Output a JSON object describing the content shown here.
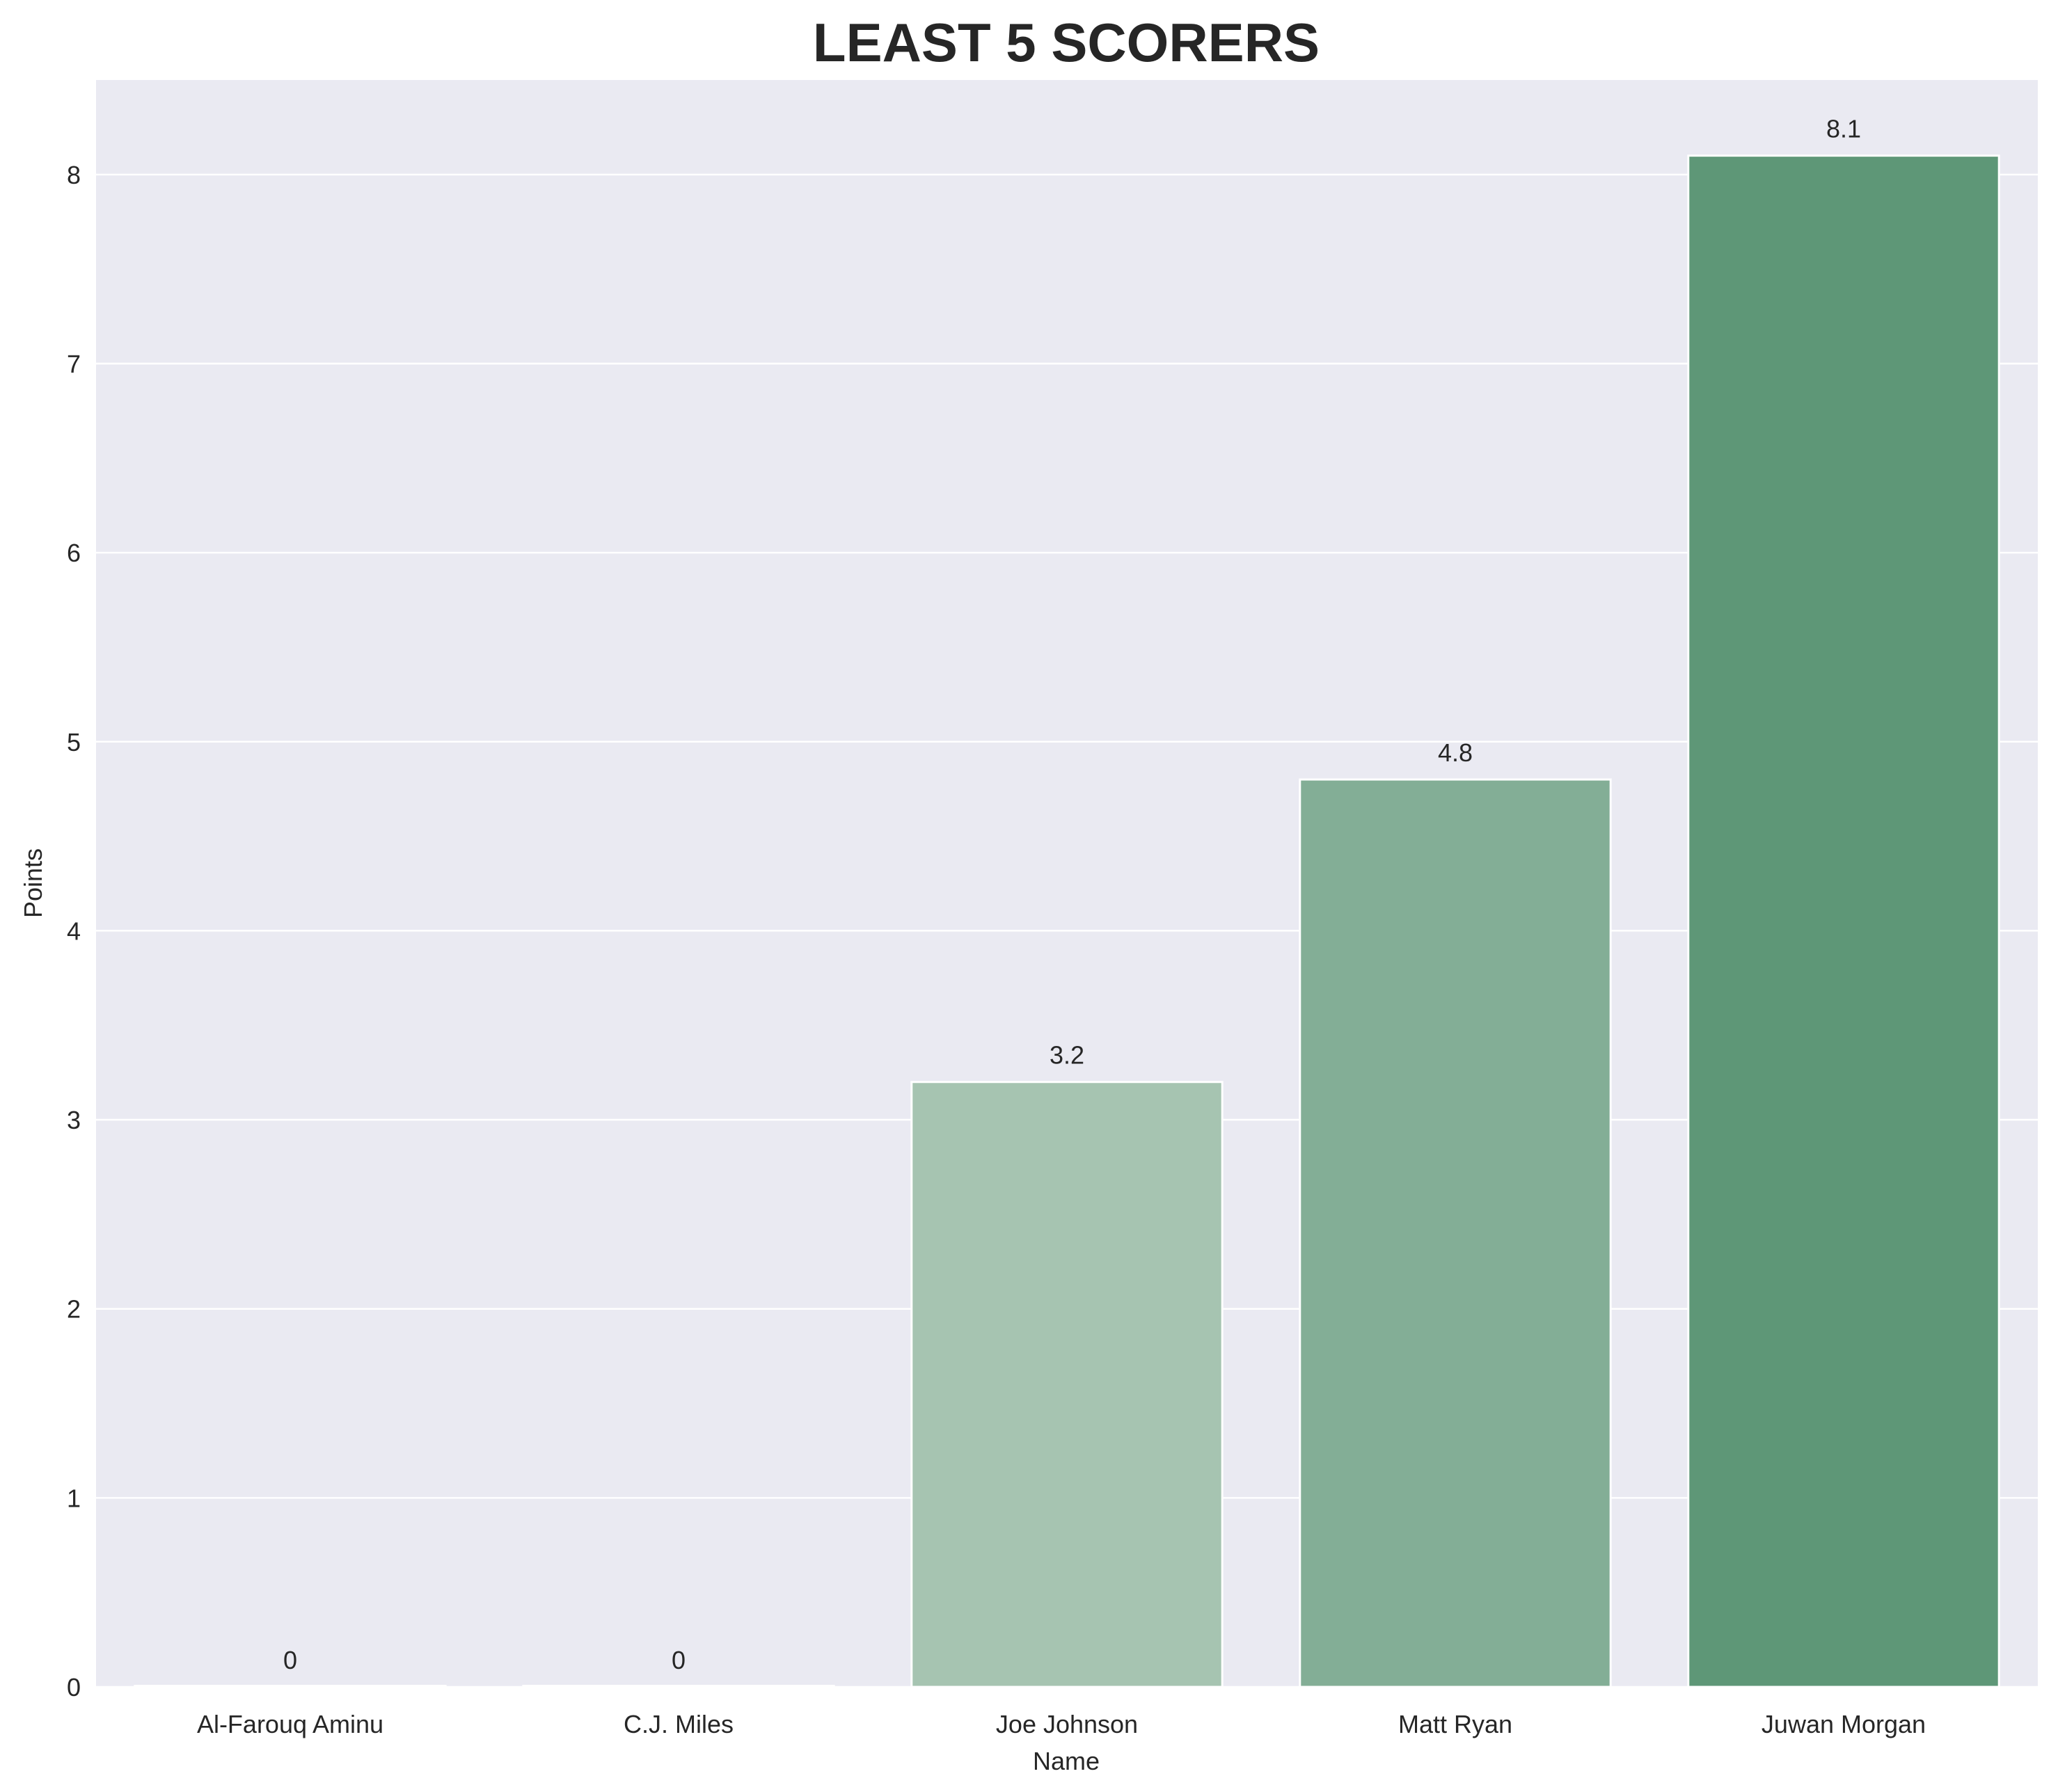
{
  "chart_data": {
    "type": "bar",
    "title": "LEAST 5 SCORERS",
    "xlabel": "Name",
    "ylabel": "Points",
    "categories": [
      "Al-Farouq Aminu",
      "C.J. Miles",
      "Joe Johnson",
      "Matt Ryan",
      "Juwan Morgan"
    ],
    "values": [
      0,
      0,
      3.2,
      4.8,
      8.1
    ],
    "value_labels": [
      "0",
      "0",
      "3.2",
      "4.8",
      "8.1"
    ],
    "ylim": [
      0,
      8.5
    ],
    "yticks": [
      "0",
      "1",
      "2",
      "3",
      "4",
      "5",
      "6",
      "7",
      "8"
    ],
    "grid": true,
    "legend": "none",
    "colors": {
      "plot_background": "#eaeaf2",
      "grid": "#ffffff",
      "bars": [
        "#e2ede5",
        "#c4dccb",
        "#a6c4b1",
        "#83ae96",
        "#5e9777"
      ]
    }
  }
}
